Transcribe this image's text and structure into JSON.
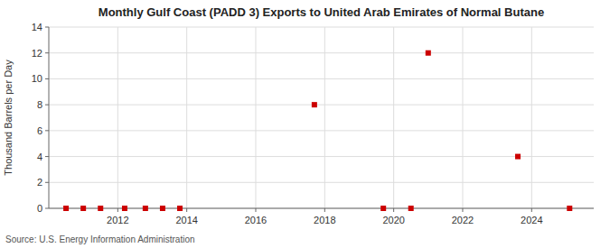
{
  "chart_data": {
    "type": "scatter",
    "title": "Monthly Gulf Coast (PADD 3) Exports to United Arab Emirates of Normal Butane",
    "ylabel": "Thousand Barrels per Day",
    "source": "Source: U.S. Energy Information Administration",
    "x": [
      2010.5,
      2011.0,
      2011.5,
      2012.2,
      2012.8,
      2013.3,
      2013.8,
      2017.7,
      2019.7,
      2020.5,
      2021.0,
      2023.6,
      2025.1
    ],
    "values": [
      0.0,
      0.0,
      0.0,
      0.0,
      0.0,
      0.0,
      0.0,
      8.0,
      0.0,
      0.0,
      12.0,
      4.0,
      0.0
    ],
    "color": "#cc0000",
    "marker": "square",
    "xlim": [
      2010.0,
      2025.8
    ],
    "xticks": [
      2012,
      2014,
      2016,
      2018,
      2020,
      2022,
      2024
    ],
    "ylim": [
      0,
      14
    ],
    "yticks": [
      0,
      2,
      4,
      6,
      8,
      10,
      12,
      14
    ],
    "grid": true
  }
}
